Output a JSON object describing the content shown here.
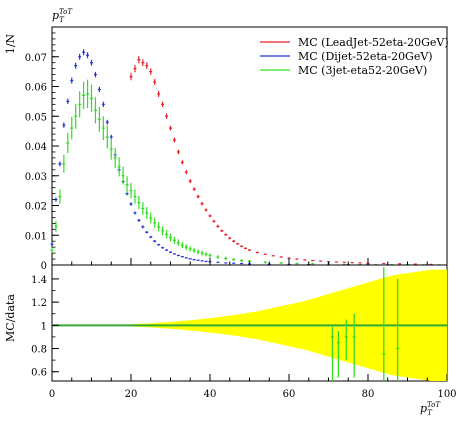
{
  "chart_data": {
    "type": "scatter",
    "top_label": "p_T^{ToT}",
    "ylabel": "1/N",
    "ratio_ylabel": "MC/data",
    "xlabel": "p_T^{ToT}",
    "xlim": [
      0,
      100
    ],
    "ylim": [
      0,
      0.08
    ],
    "ratio_ylim": [
      0.52,
      1.52
    ],
    "x_ticks": [
      0,
      20,
      40,
      60,
      80,
      100
    ],
    "y_ticks": [
      0.01,
      0.02,
      0.03,
      0.04,
      0.05,
      0.06,
      0.07
    ],
    "ratio_ticks": [
      0.6,
      0.8,
      1,
      1.2,
      1.4
    ],
    "legend_position": "top-right",
    "series": [
      {
        "name": "MC (LeadJet-52eta-20GeV)",
        "color": "#e8202a",
        "x": [
          20,
          21,
          22,
          23,
          24,
          25,
          26,
          27,
          28,
          29,
          30,
          31,
          32,
          33,
          34,
          35,
          36,
          37,
          38,
          39,
          40,
          41,
          42,
          43,
          44,
          45,
          46,
          47,
          48,
          49,
          50,
          52,
          54,
          56,
          58,
          60,
          62,
          64,
          66,
          68,
          70,
          72,
          74,
          76,
          78,
          80,
          84,
          88,
          92,
          96
        ],
        "y": [
          0.0633,
          0.066,
          0.069,
          0.068,
          0.067,
          0.065,
          0.0615,
          0.0575,
          0.054,
          0.05,
          0.046,
          0.042,
          0.038,
          0.0345,
          0.0312,
          0.0282,
          0.0255,
          0.023,
          0.0206,
          0.0185,
          0.0165,
          0.0147,
          0.013,
          0.0115,
          0.0102,
          0.009,
          0.008,
          0.0071,
          0.0063,
          0.0056,
          0.005,
          0.0042,
          0.0036,
          0.0031,
          0.0027,
          0.0023,
          0.002,
          0.0017,
          0.0015,
          0.0013,
          0.0011,
          0.001,
          0.0009,
          0.0008,
          0.0007,
          0.0006,
          0.0005,
          0.0004,
          0.0003,
          0.0002
        ],
        "yerr": [
          0.0012,
          0.0012,
          0.0012,
          0.0011,
          0.0011,
          0.0011,
          0.001,
          0.001,
          0.0009,
          0.0009,
          0.0008,
          0.0008,
          0.0008,
          0.0007,
          0.0007,
          0.0007,
          0.0006,
          0.0006,
          0.0006,
          0.0005,
          0.0005,
          0.0005,
          0.0005,
          0.0004,
          0.0004,
          0.0004,
          0.0004,
          0.0003,
          0.0003,
          0.0003,
          0.0003,
          0.0003,
          0.0002,
          0.0002,
          0.0002,
          0.0002,
          0.0002,
          0.0002,
          0.0002,
          0.0001,
          0.0001,
          0.0001,
          0.0001,
          0.0001,
          0.0001,
          0.0001,
          0.0001,
          0.0001,
          0.0001,
          0.0001
        ]
      },
      {
        "name": "MC (Dijet-52eta-20GeV)",
        "color": "#2233dd",
        "x": [
          0,
          1,
          2,
          3,
          4,
          5,
          6,
          7,
          8,
          9,
          10,
          11,
          12,
          13,
          14,
          15,
          16,
          17,
          18,
          19,
          20,
          21,
          22,
          23,
          24,
          25,
          26,
          27,
          28,
          29,
          30,
          31,
          32,
          33,
          34,
          35,
          36,
          37,
          38,
          39,
          40,
          42,
          44,
          46,
          48,
          50,
          55,
          60,
          65,
          70,
          75,
          80,
          85,
          90,
          95
        ],
        "y": [
          0.007,
          0.022,
          0.034,
          0.047,
          0.055,
          0.062,
          0.067,
          0.07,
          0.0715,
          0.0705,
          0.068,
          0.064,
          0.059,
          0.054,
          0.048,
          0.043,
          0.037,
          0.032,
          0.028,
          0.024,
          0.0205,
          0.0175,
          0.015,
          0.0128,
          0.011,
          0.0094,
          0.008,
          0.0068,
          0.0058,
          0.005,
          0.0043,
          0.0037,
          0.0032,
          0.0028,
          0.0024,
          0.0021,
          0.0018,
          0.0016,
          0.0014,
          0.0012,
          0.0011,
          0.0009,
          0.0007,
          0.0006,
          0.0005,
          0.0004,
          0.0003,
          0.0002,
          0.00015,
          0.0001,
          0.0001,
          8e-05,
          6e-05,
          5e-05,
          4e-05
        ],
        "yerr": [
          0.0006,
          0.0007,
          0.0008,
          0.0009,
          0.0009,
          0.001,
          0.001,
          0.001,
          0.001,
          0.001,
          0.001,
          0.0009,
          0.0009,
          0.0009,
          0.0008,
          0.0008,
          0.0007,
          0.0007,
          0.0006,
          0.0006,
          0.0006,
          0.0005,
          0.0005,
          0.0005,
          0.0004,
          0.0004,
          0.0004,
          0.0003,
          0.0003,
          0.0003,
          0.0003,
          0.0002,
          0.0002,
          0.0002,
          0.0002,
          0.0002,
          0.0002,
          0.0001,
          0.0001,
          0.0001,
          0.0001,
          0.0001,
          0.0001,
          0.0001,
          0.0001,
          0.0001,
          0.0001,
          0.0001,
          0.0001,
          0.0001,
          0.0001,
          0.0001,
          0.0001,
          0.0001,
          0.0001
        ]
      },
      {
        "name": "MC (3jet-eta52-20GeV)",
        "color": "#33dd22",
        "x": [
          0,
          1,
          2,
          3,
          4,
          5,
          6,
          7,
          8,
          9,
          10,
          11,
          12,
          13,
          14,
          15,
          16,
          17,
          18,
          19,
          20,
          21,
          22,
          23,
          24,
          25,
          26,
          27,
          28,
          29,
          30,
          31,
          32,
          33,
          34,
          35,
          36,
          37,
          38,
          39,
          40,
          42,
          44,
          46,
          48,
          50,
          54,
          58,
          62,
          66,
          70,
          74,
          78,
          82,
          86,
          90,
          94,
          98
        ],
        "y": [
          0.005,
          0.013,
          0.023,
          0.034,
          0.041,
          0.046,
          0.05,
          0.054,
          0.057,
          0.0575,
          0.056,
          0.052,
          0.049,
          0.046,
          0.043,
          0.039,
          0.036,
          0.033,
          0.03,
          0.027,
          0.025,
          0.023,
          0.021,
          0.019,
          0.0175,
          0.0158,
          0.0142,
          0.0128,
          0.0115,
          0.0103,
          0.0092,
          0.0083,
          0.0075,
          0.0067,
          0.006,
          0.0054,
          0.0049,
          0.0044,
          0.004,
          0.0036,
          0.0032,
          0.0027,
          0.0022,
          0.0018,
          0.0015,
          0.0013,
          0.0009,
          0.0007,
          0.0005,
          0.0004,
          0.0003,
          0.0002,
          0.00015,
          0.0001,
          0.0001,
          8e-05,
          6e-05,
          5e-05
        ],
        "yerr": [
          0.001,
          0.0018,
          0.0024,
          0.003,
          0.0034,
          0.0038,
          0.0042,
          0.0044,
          0.0046,
          0.0048,
          0.0046,
          0.0044,
          0.0042,
          0.004,
          0.0038,
          0.0036,
          0.0034,
          0.0032,
          0.003,
          0.0028,
          0.0026,
          0.0024,
          0.0022,
          0.0021,
          0.002,
          0.0018,
          0.0017,
          0.0016,
          0.0015,
          0.0014,
          0.0013,
          0.0012,
          0.0011,
          0.001,
          0.001,
          0.0009,
          0.0009,
          0.0008,
          0.0008,
          0.0007,
          0.0007,
          0.0006,
          0.0006,
          0.0005,
          0.0005,
          0.0004,
          0.0004,
          0.0003,
          0.0003,
          0.0003,
          0.0002,
          0.0002,
          0.0002,
          0.0002,
          0.0002,
          0.0001,
          0.0001,
          0.0001
        ]
      }
    ],
    "ratio": {
      "line_value": 1,
      "line_color": "#33aa33",
      "band_color": "#ffff00",
      "band": {
        "x": [
          20,
          22,
          24,
          26,
          28,
          30,
          32,
          34,
          36,
          38,
          40,
          42,
          44,
          46,
          48,
          50,
          52,
          54,
          56,
          58,
          60,
          62,
          64,
          66,
          68,
          70,
          72,
          74,
          76,
          78,
          80,
          82,
          84,
          86,
          88,
          90,
          92,
          94,
          96,
          98,
          100
        ],
        "halfwidth": [
          0.01,
          0.013,
          0.016,
          0.02,
          0.025,
          0.03,
          0.035,
          0.041,
          0.047,
          0.054,
          0.062,
          0.07,
          0.079,
          0.088,
          0.098,
          0.11,
          0.12,
          0.135,
          0.15,
          0.165,
          0.18,
          0.195,
          0.21,
          0.23,
          0.25,
          0.27,
          0.29,
          0.31,
          0.33,
          0.35,
          0.37,
          0.39,
          0.41,
          0.43,
          0.44,
          0.45,
          0.46,
          0.47,
          0.48,
          0.48,
          0.48
        ]
      },
      "outliers": [
        {
          "x": 71,
          "y": 0.9,
          "lo": 0.52,
          "hi": 1.0
        },
        {
          "x": 72.5,
          "y": 0.85,
          "lo": 0.55,
          "hi": 0.95
        },
        {
          "x": 74.5,
          "y": 0.9,
          "lo": 0.7,
          "hi": 1.05
        },
        {
          "x": 76.5,
          "y": 0.9,
          "lo": 0.55,
          "hi": 1.1
        },
        {
          "x": 84,
          "y": 0.75,
          "lo": 0.52,
          "hi": 1.5
        },
        {
          "x": 87.5,
          "y": 0.8,
          "lo": 0.52,
          "hi": 1.4
        }
      ]
    }
  }
}
